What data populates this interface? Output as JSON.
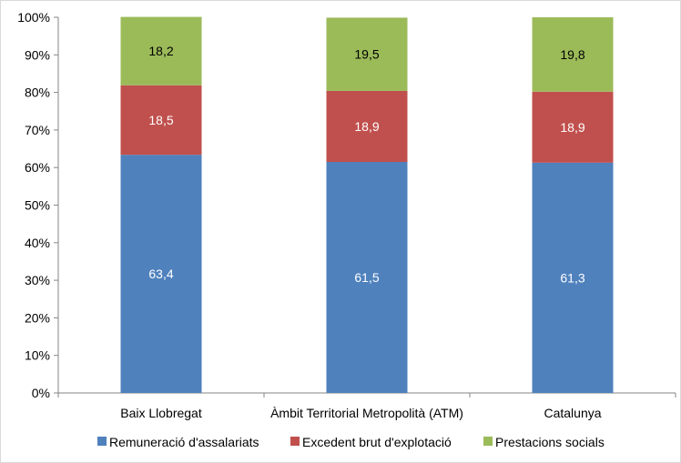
{
  "chart_data": {
    "type": "bar",
    "stacked": true,
    "percent_stacked": true,
    "categories": [
      "Baix Llobregat",
      "Àmbit Territorial Metropolità (ATM)",
      "Catalunya"
    ],
    "series": [
      {
        "name": "Remuneració d'assalariats",
        "values": [
          63.4,
          61.5,
          61.3
        ],
        "labels": [
          "63,4",
          "61,5",
          "61,3"
        ],
        "color": "#4F81BD",
        "label_color": "#ffffff"
      },
      {
        "name": "Excedent brut d'explotació",
        "values": [
          18.5,
          18.9,
          18.9
        ],
        "labels": [
          "18,5",
          "18,9",
          "18,9"
        ],
        "color": "#C0504D",
        "label_color": "#ffffff"
      },
      {
        "name": "Prestacions socials",
        "values": [
          18.2,
          19.5,
          19.8
        ],
        "labels": [
          "18,2",
          "19,5",
          "19,8"
        ],
        "color": "#9BBB59",
        "label_color": "#000000"
      }
    ],
    "y_ticks": [
      "0%",
      "10%",
      "20%",
      "30%",
      "40%",
      "50%",
      "60%",
      "70%",
      "80%",
      "90%",
      "100%"
    ],
    "ylim": [
      0,
      100
    ],
    "grid": false,
    "legend_position": "bottom"
  }
}
